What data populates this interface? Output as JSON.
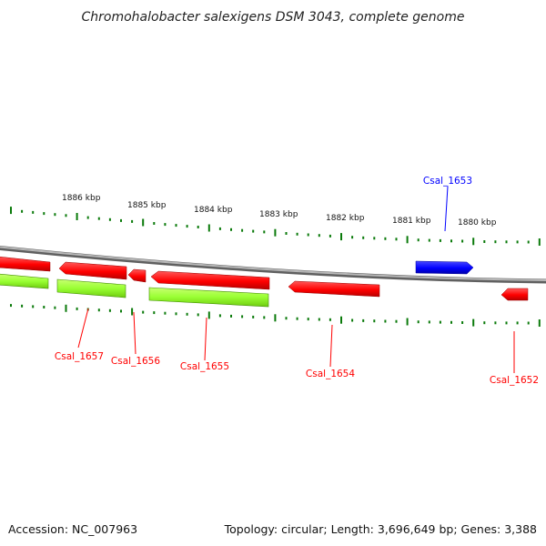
{
  "title": "Chromohalobacter salexigens DSM 3043, complete genome",
  "footer": {
    "accession": "Accession: NC_007963",
    "summary": "Topology: circular; Length: 3,696,649 bp; Genes: 3,388"
  },
  "scale": {
    "labels": [
      "1886 kbp",
      "1885 kbp",
      "1884 kbp",
      "1883 kbp",
      "1882 kbp",
      "1881 kbp",
      "1880 kbp"
    ]
  },
  "genes": [
    {
      "label": "Csal_1657",
      "color": "#ff0000"
    },
    {
      "label": "Csal_1656",
      "color": "#ff0000"
    },
    {
      "label": "Csal_1655",
      "color": "#ff0000"
    },
    {
      "label": "Csal_1654",
      "color": "#ff0000"
    },
    {
      "label": "Csal_1653",
      "color": "#0000ff"
    },
    {
      "label": "Csal_1652",
      "color": "#ff0000"
    }
  ],
  "colors": {
    "backbone": "#8a8a8a",
    "ticks": "#0a7a0a",
    "forward_gene": "#0000ff",
    "reverse_gene": "#ff0000",
    "cds_feature": "#99ff33"
  }
}
